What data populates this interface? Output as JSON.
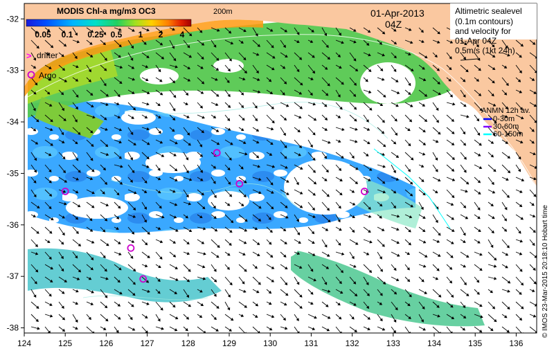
{
  "colorbar": {
    "title": "MODIS Chl-a mg/m3 OC3",
    "ticks": [
      "0.05",
      "0.1",
      "0.25",
      "0.5",
      "1",
      "2",
      "4"
    ],
    "colors": [
      "#1a1adc",
      "#0060ff",
      "#00b4ff",
      "#00e0c8",
      "#20d060",
      "#a0e020",
      "#ffd000",
      "#ff8000",
      "#e02000",
      "#a00000"
    ]
  },
  "legend": {
    "drifter": "drifter",
    "argo": "Argo",
    "drifter_color": "#ff00ff",
    "argo_color": "#cc00cc"
  },
  "header": {
    "date": "01-Apr-2013",
    "time": "04Z",
    "isobath": "200m"
  },
  "info_box": {
    "lines": [
      "Altimetric sealevel",
      "(0.1m contours)",
      "and velocity for",
      "01-Apr 04Z",
      "0.5m/s (1kt 24h)"
    ]
  },
  "anmn": {
    "title": "ANMN 12h av.",
    "items": [
      {
        "label": "0-30m",
        "color": "#0000ff"
      },
      {
        "label": "30-60m",
        "color": "#8000ff"
      },
      {
        "label": "60-150m",
        "color": "#00ffff"
      }
    ]
  },
  "credit": "© IMOS 23-Mar-2015 20:18:10 Hobart time",
  "axes": {
    "x_ticks": [
      "124",
      "125",
      "126",
      "127",
      "128",
      "129",
      "130",
      "131",
      "132",
      "133",
      "134",
      "135",
      "136"
    ],
    "y_ticks": [
      "-32",
      "-33",
      "-34",
      "-35",
      "-36",
      "-37",
      "-38"
    ]
  },
  "argo_floats": [
    {
      "lon": 125.0,
      "lat": -35.35
    },
    {
      "lon": 126.6,
      "lat": -36.45
    },
    {
      "lon": 126.9,
      "lat": -37.05
    },
    {
      "lon": 128.7,
      "lat": -34.6
    },
    {
      "lon": 129.25,
      "lat": -35.2
    },
    {
      "lon": 132.3,
      "lat": -35.35
    }
  ],
  "land_color": "#fac8a0",
  "ocean_color": "#ffffff"
}
